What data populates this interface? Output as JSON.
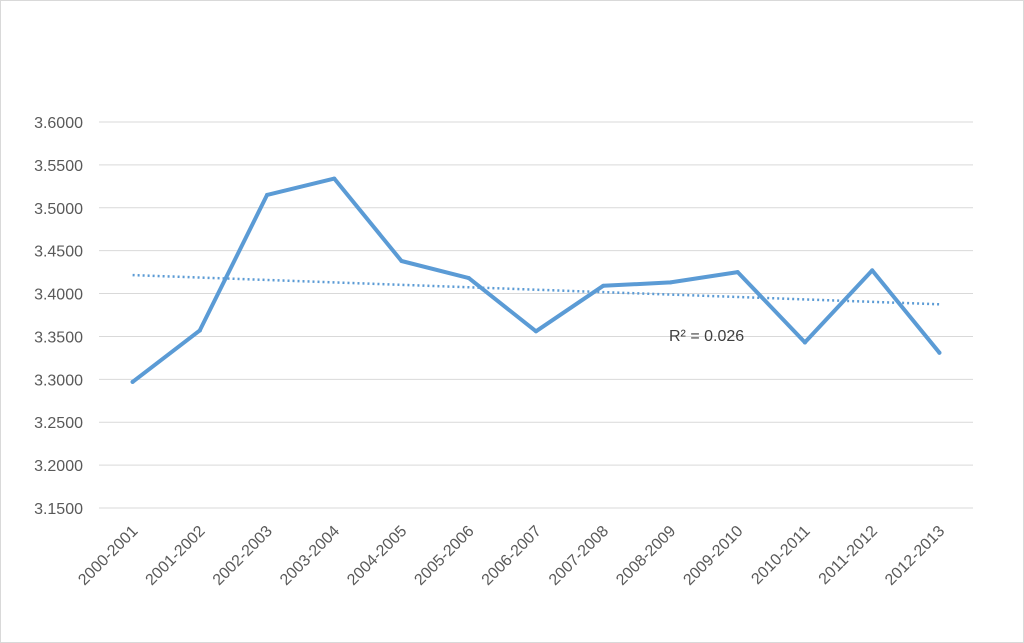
{
  "chart_data": {
    "type": "line",
    "title": "",
    "xlabel": "",
    "ylabel": "",
    "categories": [
      "2000-2001",
      "2001-2002",
      "2002-2003",
      "2003-2004",
      "2004-2005",
      "2005-2006",
      "2006-2007",
      "2007-2008",
      "2008-2009",
      "2009-2010",
      "2010-2011",
      "2011-2012",
      "2012-2013"
    ],
    "series": [
      {
        "values": [
          3.297,
          3.357,
          3.515,
          3.534,
          3.438,
          3.418,
          3.356,
          3.409,
          3.413,
          3.425,
          3.343,
          3.427,
          3.331
        ],
        "color": "#5b9bd5"
      }
    ],
    "trendline": {
      "type": "linear",
      "start": 3.4215,
      "end": 3.3875,
      "style": "dotted",
      "color": "#5b9bd5",
      "label": "R² = 0.026"
    },
    "ylim": [
      3.15,
      3.6
    ],
    "yticks": [
      "3.1500",
      "3.2000",
      "3.2500",
      "3.3000",
      "3.3500",
      "3.4000",
      "3.4500",
      "3.5000",
      "3.5500",
      "3.6000"
    ],
    "grid": true,
    "legend": "none"
  }
}
